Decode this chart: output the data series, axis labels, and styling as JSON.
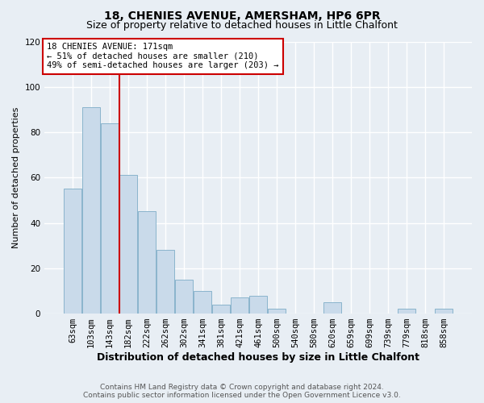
{
  "title": "18, CHENIES AVENUE, AMERSHAM, HP6 6PR",
  "subtitle": "Size of property relative to detached houses in Little Chalfont",
  "xlabel": "Distribution of detached houses by size in Little Chalfont",
  "ylabel": "Number of detached properties",
  "bin_labels": [
    "63sqm",
    "103sqm",
    "143sqm",
    "182sqm",
    "222sqm",
    "262sqm",
    "302sqm",
    "341sqm",
    "381sqm",
    "421sqm",
    "461sqm",
    "500sqm",
    "540sqm",
    "580sqm",
    "620sqm",
    "659sqm",
    "699sqm",
    "739sqm",
    "779sqm",
    "818sqm",
    "858sqm"
  ],
  "bar_values": [
    55,
    91,
    84,
    61,
    45,
    28,
    15,
    10,
    4,
    7,
    8,
    2,
    0,
    0,
    5,
    0,
    0,
    0,
    2,
    0,
    2
  ],
  "bar_color": "#c9daea",
  "bar_edgecolor": "#8ab4cc",
  "vline_color": "#cc0000",
  "annotation_text": "18 CHENIES AVENUE: 171sqm\n← 51% of detached houses are smaller (210)\n49% of semi-detached houses are larger (203) →",
  "annotation_box_edgecolor": "#cc0000",
  "annotation_box_facecolor": "white",
  "ylim": [
    0,
    120
  ],
  "yticks": [
    0,
    20,
    40,
    60,
    80,
    100,
    120
  ],
  "footer_line1": "Contains HM Land Registry data © Crown copyright and database right 2024.",
  "footer_line2": "Contains public sector information licensed under the Open Government Licence v3.0.",
  "background_color": "#e8eef4",
  "grid_color": "#ffffff",
  "title_fontsize": 10,
  "subtitle_fontsize": 9,
  "xlabel_fontsize": 9,
  "ylabel_fontsize": 8,
  "tick_fontsize": 7.5,
  "annotation_fontsize": 7.5,
  "footer_fontsize": 6.5
}
